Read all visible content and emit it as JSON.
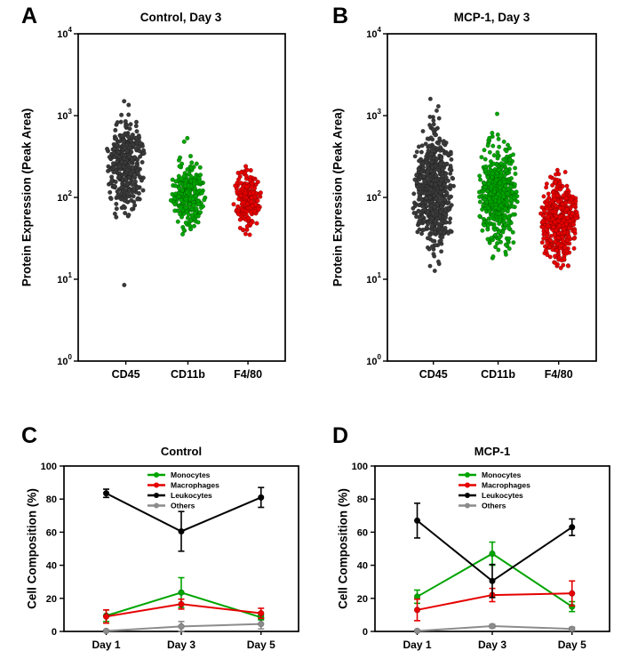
{
  "figure": {
    "background": "#ffffff"
  },
  "chart_data": [
    {
      "panel_label": "A",
      "type": "beeswarm",
      "title": "Control, Day 3",
      "ylabel": "Protein Expression (Peak Area)",
      "y_scale": "log10",
      "ylim_exponents": [
        0,
        4
      ],
      "y_tick_exponents": [
        0,
        1,
        2,
        3,
        4
      ],
      "categories": [
        "CD45",
        "CD11b",
        "F4/80"
      ],
      "groups": [
        {
          "category": "CD45",
          "color": "#3a3a3a",
          "n": 380,
          "log10_mean": 2.38,
          "log10_sd": 0.26,
          "value_min": 35,
          "value_max": 1200,
          "outlier_values": [
            8.5,
            1350,
            1500
          ]
        },
        {
          "category": "CD11b",
          "color": "#00a400",
          "n": 270,
          "log10_mean": 2.05,
          "log10_sd": 0.2,
          "value_min": 28,
          "value_max": 430,
          "outlier_values": [
            480,
            530
          ]
        },
        {
          "category": "F4/80",
          "color": "#e60000",
          "n": 200,
          "log10_mean": 1.98,
          "log10_sd": 0.16,
          "value_min": 30,
          "value_max": 255,
          "outlier_values": []
        }
      ]
    },
    {
      "panel_label": "B",
      "type": "beeswarm",
      "title": "MCP-1, Day 3",
      "ylabel": "Protein Expression (Peak Area)",
      "y_scale": "log10",
      "ylim_exponents": [
        0,
        4
      ],
      "y_tick_exponents": [
        0,
        1,
        2,
        3,
        4
      ],
      "categories": [
        "CD45",
        "CD11b",
        "F4/80"
      ],
      "groups": [
        {
          "category": "CD45",
          "color": "#3a3a3a",
          "n": 650,
          "log10_mean": 2.08,
          "log10_sd": 0.33,
          "value_min": 10,
          "value_max": 1000,
          "outlier_values": [
            1150,
            1300,
            1600
          ]
        },
        {
          "category": "CD11b",
          "color": "#00a400",
          "n": 520,
          "log10_mean": 2.02,
          "log10_sd": 0.3,
          "value_min": 17,
          "value_max": 700,
          "outlier_values": [
            1050
          ]
        },
        {
          "category": "F4/80",
          "color": "#e60000",
          "n": 480,
          "log10_mean": 1.72,
          "log10_sd": 0.24,
          "value_min": 12,
          "value_max": 255,
          "outlier_values": []
        }
      ]
    },
    {
      "panel_label": "C",
      "type": "line",
      "title": "Control",
      "ylabel": "Cell Composition (%)",
      "ylim": [
        0,
        100
      ],
      "y_ticks": [
        0,
        20,
        40,
        60,
        80,
        100
      ],
      "categories": [
        "Day 1",
        "Day 3",
        "Day 5"
      ],
      "legend_position": "top-center",
      "series": [
        {
          "name": "Monocytes",
          "color": "#00a400",
          "z": 1,
          "values": [
            9.5,
            23.5,
            8.5
          ],
          "errors": [
            3.5,
            9,
            1.5
          ]
        },
        {
          "name": "Macrophages",
          "color": "#e60000",
          "z": 2,
          "values": [
            9,
            16.5,
            11
          ],
          "errors": [
            4,
            3,
            3
          ]
        },
        {
          "name": "Leukocytes",
          "color": "#000000",
          "z": 3,
          "values": [
            83.5,
            60.5,
            81
          ],
          "errors": [
            2.5,
            12,
            6
          ]
        },
        {
          "name": "Others",
          "color": "#8c8c8c",
          "z": 0,
          "values": [
            0.3,
            3,
            4.5
          ],
          "errors": [
            0.5,
            3,
            3
          ]
        }
      ]
    },
    {
      "panel_label": "D",
      "type": "line",
      "title": "MCP-1",
      "ylabel": "Cell Composition (%)",
      "ylim": [
        0,
        100
      ],
      "y_ticks": [
        0,
        20,
        40,
        60,
        80,
        100
      ],
      "categories": [
        "Day 1",
        "Day 3",
        "Day 5"
      ],
      "legend_position": "top-center",
      "series": [
        {
          "name": "Monocytes",
          "color": "#00a400",
          "z": 1,
          "values": [
            21,
            47,
            15
          ],
          "errors": [
            4,
            7,
            3
          ]
        },
        {
          "name": "Macrophages",
          "color": "#e60000",
          "z": 2,
          "values": [
            13,
            22,
            23
          ],
          "errors": [
            6.5,
            4,
            7.5
          ]
        },
        {
          "name": "Leukocytes",
          "color": "#000000",
          "z": 3,
          "values": [
            67,
            30.5,
            63
          ],
          "errors": [
            10.5,
            10,
            5
          ]
        },
        {
          "name": "Others",
          "color": "#8c8c8c",
          "z": 0,
          "values": [
            0.3,
            3.2,
            1.5
          ],
          "errors": [
            0.5,
            1,
            1
          ]
        }
      ]
    }
  ]
}
